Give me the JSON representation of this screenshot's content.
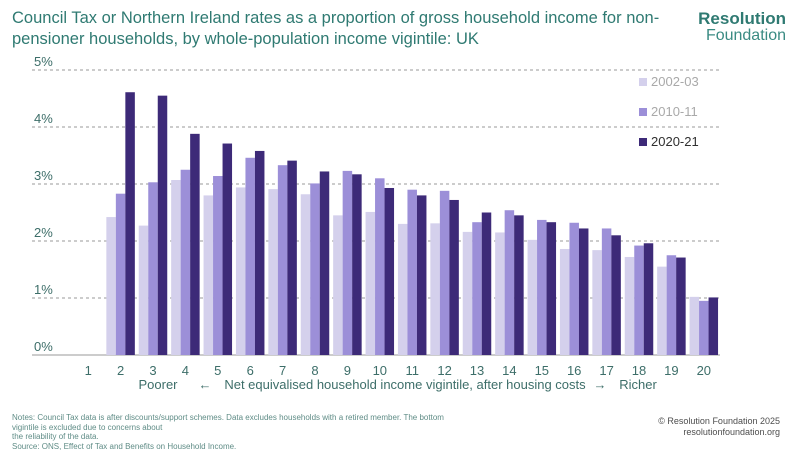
{
  "header": {
    "title": "Council Tax or Northern Ireland rates as a proportion of gross household income for non-pensioner households, by whole-population income vigintile: UK"
  },
  "logo": {
    "line1": "Resolution",
    "line2": "Foundation"
  },
  "chart_data": {
    "type": "bar",
    "categories": [
      "1",
      "2",
      "3",
      "4",
      "5",
      "6",
      "7",
      "8",
      "9",
      "10",
      "11",
      "12",
      "13",
      "14",
      "15",
      "16",
      "17",
      "18",
      "19",
      "20"
    ],
    "series": [
      {
        "name": "2002-03",
        "color": "#d4d0ec",
        "values": [
          null,
          2.42,
          2.27,
          3.07,
          2.8,
          2.94,
          2.91,
          2.82,
          2.45,
          2.51,
          2.3,
          2.31,
          2.16,
          2.15,
          2.02,
          1.86,
          1.84,
          1.72,
          1.55,
          1.02
        ]
      },
      {
        "name": "2010-11",
        "color": "#9c8fd8",
        "values": [
          null,
          2.83,
          3.03,
          3.25,
          3.14,
          3.46,
          3.33,
          3.01,
          3.23,
          3.1,
          2.9,
          2.88,
          2.33,
          2.54,
          2.37,
          2.32,
          2.22,
          1.92,
          1.75,
          0.95
        ]
      },
      {
        "name": "2020-21",
        "color": "#3d2a78",
        "values": [
          null,
          4.61,
          4.55,
          3.88,
          3.71,
          3.58,
          3.41,
          3.22,
          3.17,
          2.93,
          2.8,
          2.72,
          2.5,
          2.45,
          2.33,
          2.22,
          2.1,
          1.96,
          1.71,
          1.01
        ]
      }
    ],
    "yticks": [
      "0%",
      "1%",
      "2%",
      "3%",
      "4%",
      "5%"
    ],
    "ylim": [
      0,
      5
    ],
    "xlabel": {
      "left": "Poorer",
      "left_arrow": "←",
      "middle": "Net equivalised household income vigintile, after housing costs",
      "right_arrow": "→",
      "right": "Richer"
    },
    "legend_position": "right",
    "grid": "dashed horizontal"
  },
  "notes": {
    "line1": "Notes: Council Tax data is after discounts/support schemes. Data excludes households with a retired member. The bottom vigintile is excluded due to concerns about",
    "line2": "the reliability of the data.",
    "line3": "Source: ONS, Effect of Tax and Benefits on Household Income."
  },
  "credit": {
    "line1": "© Resolution Foundation 2025",
    "line2": "resolutionfoundation.org"
  }
}
